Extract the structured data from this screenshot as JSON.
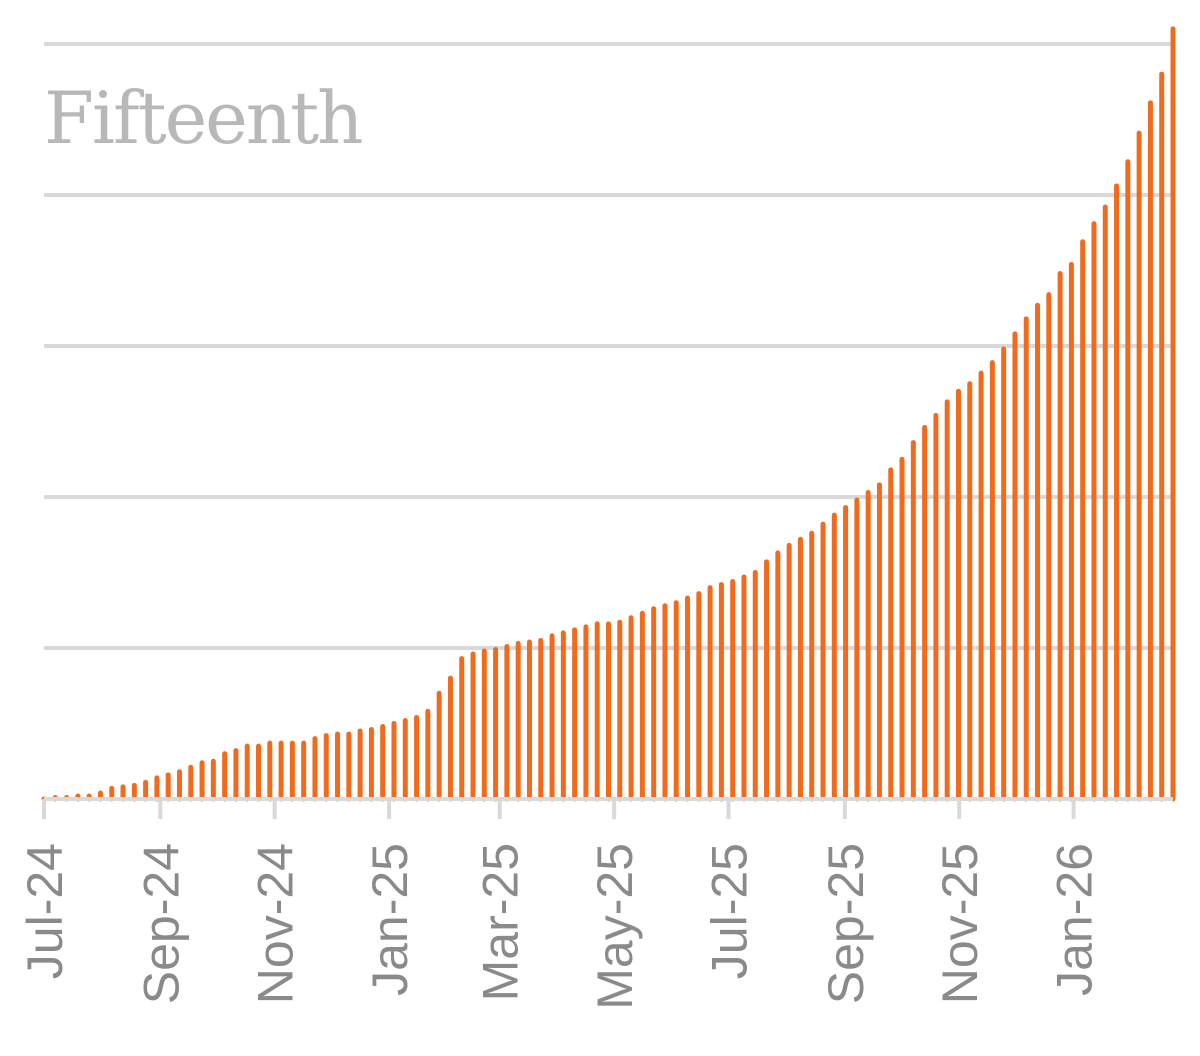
{
  "chart_data": {
    "type": "bar",
    "title": "Fifteenth",
    "xlabel": "",
    "ylabel": "",
    "x_start": "2024-07-01",
    "x_end": "2026-02-23",
    "ylim": [
      0,
      5
    ],
    "y_gridlines": [
      1,
      2,
      3,
      4,
      5
    ],
    "grid": true,
    "colors": {
      "bars": "#f26b1d",
      "grid": "#d9d9d9",
      "tick_labels": "#8a8a8a",
      "title": "#b8b8b8"
    },
    "x_tick_labels": [
      {
        "label": "Jul-24",
        "date": "2024-07-01"
      },
      {
        "label": "Sep-24",
        "date": "2024-09-01"
      },
      {
        "label": "Nov-24",
        "date": "2024-11-01"
      },
      {
        "label": "Jan-25",
        "date": "2025-01-01"
      },
      {
        "label": "Mar-25",
        "date": "2025-03-01"
      },
      {
        "label": "May-25",
        "date": "2025-05-01"
      },
      {
        "label": "Jul-25",
        "date": "2025-07-01"
      },
      {
        "label": "Sep-25",
        "date": "2025-09-01"
      },
      {
        "label": "Nov-25",
        "date": "2025-11-01"
      },
      {
        "label": "Jan-26",
        "date": "2026-01-01"
      }
    ],
    "series": [
      {
        "values": [
          0.0,
          0.01,
          0.01,
          0.02,
          0.02,
          0.04,
          0.07,
          0.08,
          0.09,
          0.11,
          0.14,
          0.16,
          0.18,
          0.21,
          0.24,
          0.25,
          0.3,
          0.32,
          0.35,
          0.35,
          0.37,
          0.37,
          0.37,
          0.37,
          0.4,
          0.42,
          0.43,
          0.43,
          0.45,
          0.46,
          0.48,
          0.5,
          0.52,
          0.54,
          0.58,
          0.7,
          0.8,
          0.93,
          0.96,
          0.98,
          0.99,
          1.01,
          1.03,
          1.04,
          1.05,
          1.08,
          1.1,
          1.12,
          1.14,
          1.16,
          1.16,
          1.17,
          1.2,
          1.23,
          1.26,
          1.28,
          1.3,
          1.33,
          1.36,
          1.4,
          1.42,
          1.44,
          1.47,
          1.5,
          1.57,
          1.63,
          1.68,
          1.72,
          1.76,
          1.82,
          1.88,
          1.93,
          1.98,
          2.03,
          2.08,
          2.18,
          2.25,
          2.36,
          2.46,
          2.54,
          2.63,
          2.7,
          2.75,
          2.82,
          2.89,
          2.98,
          3.08,
          3.18,
          3.27,
          3.34,
          3.48,
          3.54,
          3.69,
          3.81,
          3.92,
          4.06,
          4.22,
          4.41,
          4.61,
          4.8,
          5.1
        ]
      }
    ]
  }
}
